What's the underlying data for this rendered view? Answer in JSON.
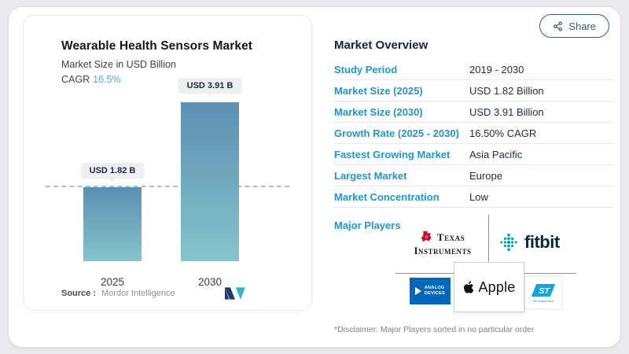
{
  "page": {
    "share_label": "Share"
  },
  "left_panel": {
    "title": "Wearable Health Sensors Market",
    "subtitle": "Market Size in USD Billion",
    "cagr_label": "CAGR",
    "cagr_value": "16.5%",
    "source_label": "Source :",
    "source_value": "Mordor Intelligence"
  },
  "chart_data": {
    "type": "bar",
    "title": "Wearable Health Sensors Market",
    "ylabel": "Market Size in USD Billion",
    "categories": [
      "2025",
      "2030"
    ],
    "values": [
      1.82,
      3.91
    ],
    "bar_labels": [
      "USD 1.82 B",
      "USD 3.91 B"
    ],
    "unit": "USD Billion",
    "cagr": "16.5%",
    "ylim": [
      0,
      4.3
    ],
    "reference_line": {
      "value": 1.82,
      "style": "dashed"
    },
    "bar_gradient": [
      "#5d8fb2",
      "#84c4cb"
    ],
    "grid": false,
    "legend": false
  },
  "overview": {
    "title": "Market Overview",
    "rows": [
      {
        "label": "Study Period",
        "value": "2019 - 2030"
      },
      {
        "label": "Market Size (2025)",
        "value": "USD 1.82 Billion"
      },
      {
        "label": "Market Size (2030)",
        "value": "USD 3.91 Billion"
      },
      {
        "label": "Growth Rate (2025 - 2030)",
        "value": "16.50% CAGR"
      },
      {
        "label": "Fastest Growing Market",
        "value": "Asia Pacific"
      },
      {
        "label": "Largest Market",
        "value": "Europe"
      },
      {
        "label": "Market Concentration",
        "value": "Low"
      }
    ],
    "major_players_label": "Major Players",
    "players": [
      "Texas Instruments",
      "Fitbit",
      "Analog Devices",
      "Apple",
      "STMicroelectronics"
    ],
    "disclaimer": "*Disclaimer: Major Players sorted in no particular order"
  },
  "logos": {
    "ti": {
      "line1": "Texas",
      "line2": "Instruments"
    },
    "fitbit": {
      "word": "fitbit"
    },
    "adi": {
      "line1": "ANALOG",
      "line2": "DEVICES"
    },
    "apple": {
      "word": "Apple"
    },
    "st": {
      "word": "ST",
      "tagline": "life.augmented"
    }
  },
  "colors": {
    "accent_blue": "#2196c9",
    "navy_text": "#1b2b49",
    "cagr_blue": "#57a9c8",
    "bar_top": "#5d8fb2",
    "bar_bottom": "#84c4cb",
    "fitbit_teal": "#00a4ad",
    "ti_red": "#c8102e",
    "adi_blue": "#0067b9",
    "st_blue": "#14a3dc",
    "share_blue": "#2d607b"
  }
}
